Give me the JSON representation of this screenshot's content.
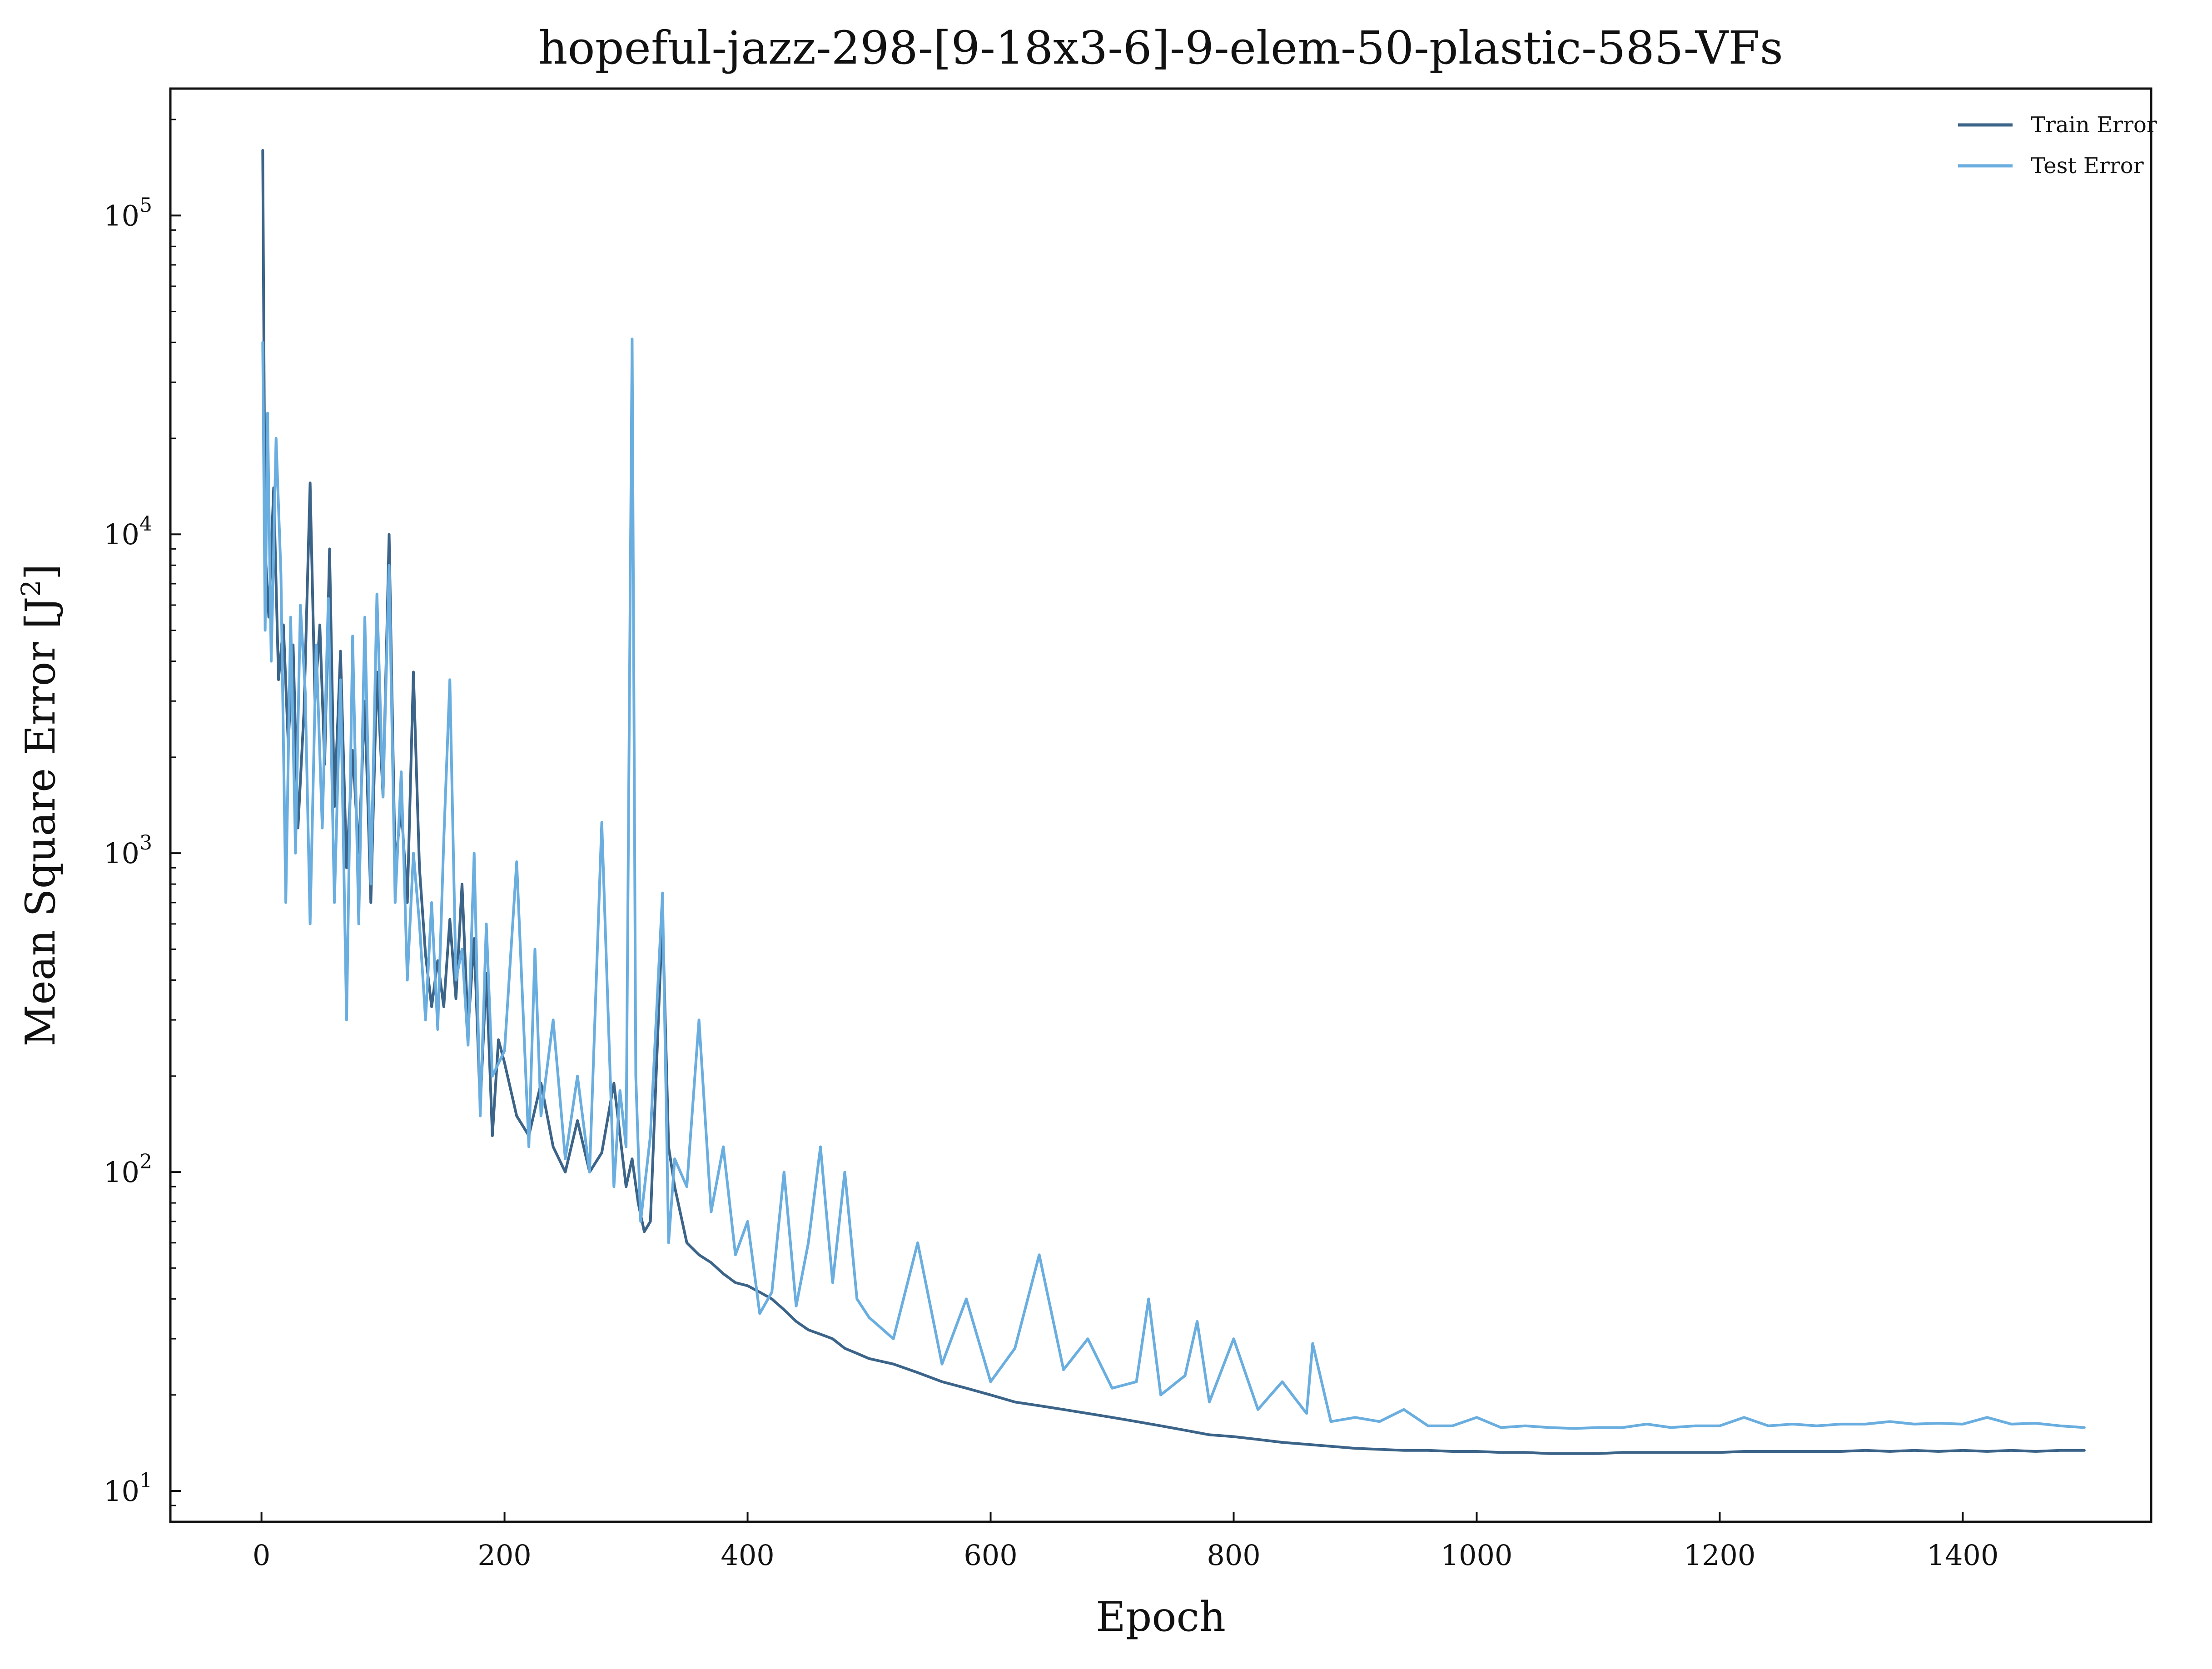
{
  "chart_data": {
    "type": "line",
    "title": "hopeful-jazz-298-[9-18x3-6]-9-elem-50-plastic-585-VFs",
    "xlabel": "Epoch",
    "ylabel": "Mean Square Error [J",
    "ylabel_sup": "2",
    "ylabel_suffix": "]",
    "y_scale": "log",
    "xlim": [
      -75,
      1555
    ],
    "ylim": [
      8,
      250000
    ],
    "xticks": [
      0,
      200,
      400,
      600,
      800,
      1000,
      1200,
      1400
    ],
    "xtick_labels": [
      "0",
      "200",
      "400",
      "600",
      "800",
      "1000",
      "1200",
      "1400"
    ],
    "yticks": [
      10,
      100,
      1000,
      10000,
      100000
    ],
    "ytick_labels": [
      {
        "base": "10",
        "exp": "1"
      },
      {
        "base": "10",
        "exp": "2"
      },
      {
        "base": "10",
        "exp": "3"
      },
      {
        "base": "10",
        "exp": "4"
      },
      {
        "base": "10",
        "exp": "5"
      }
    ],
    "grid": false,
    "legend_position": "top-right",
    "series": [
      {
        "name": "Train Error",
        "color": "#3c6489",
        "x": [
          1,
          3,
          6,
          10,
          14,
          18,
          22,
          26,
          30,
          35,
          40,
          44,
          48,
          52,
          56,
          60,
          65,
          70,
          75,
          80,
          85,
          90,
          95,
          100,
          105,
          110,
          115,
          120,
          125,
          130,
          135,
          140,
          145,
          150,
          155,
          160,
          165,
          170,
          175,
          180,
          185,
          190,
          195,
          200,
          210,
          220,
          230,
          240,
          250,
          260,
          270,
          280,
          290,
          300,
          305,
          310,
          315,
          320,
          330,
          335,
          340,
          350,
          360,
          370,
          380,
          390,
          400,
          410,
          420,
          430,
          440,
          450,
          460,
          470,
          480,
          490,
          500,
          520,
          540,
          560,
          580,
          600,
          620,
          640,
          660,
          680,
          700,
          720,
          740,
          760,
          780,
          800,
          820,
          840,
          860,
          880,
          900,
          920,
          940,
          960,
          980,
          1000,
          1020,
          1040,
          1060,
          1080,
          1100,
          1120,
          1140,
          1160,
          1180,
          1200,
          1220,
          1240,
          1260,
          1280,
          1300,
          1320,
          1340,
          1360,
          1380,
          1400,
          1420,
          1440,
          1460,
          1480,
          1500
        ],
        "y": [
          160000,
          9000,
          5500,
          14000,
          3500,
          5200,
          2200,
          4500,
          1200,
          2800,
          14500,
          3000,
          5200,
          1900,
          9000,
          1400,
          4300,
          900,
          2100,
          1000,
          3000,
          700,
          3700,
          1500,
          10000,
          900,
          1400,
          700,
          3700,
          900,
          480,
          330,
          460,
          330,
          620,
          350,
          800,
          280,
          540,
          160,
          420,
          130,
          260,
          220,
          150,
          130,
          190,
          120,
          100,
          145,
          100,
          115,
          190,
          90,
          110,
          80,
          65,
          70,
          640,
          120,
          90,
          60,
          55,
          52,
          48,
          45,
          44,
          42,
          40,
          37,
          34,
          32,
          31,
          30,
          28,
          27,
          26,
          25,
          23.5,
          22,
          21,
          20,
          19,
          18.5,
          18,
          17.5,
          17,
          16.5,
          16,
          15.5,
          15,
          14.8,
          14.5,
          14.2,
          14,
          13.8,
          13.6,
          13.5,
          13.4,
          13.4,
          13.3,
          13.3,
          13.2,
          13.2,
          13.1,
          13.1,
          13.1,
          13.2,
          13.2,
          13.2,
          13.2,
          13.2,
          13.3,
          13.3,
          13.3,
          13.3,
          13.3,
          13.4,
          13.3,
          13.4,
          13.3,
          13.4,
          13.3,
          13.4,
          13.3,
          13.4,
          13.4
        ]
      },
      {
        "name": "Test Error",
        "color": "#6aaee0",
        "x": [
          1,
          3,
          5,
          8,
          12,
          16,
          20,
          24,
          28,
          32,
          36,
          40,
          45,
          50,
          55,
          60,
          65,
          70,
          75,
          80,
          85,
          90,
          95,
          100,
          105,
          110,
          115,
          120,
          125,
          130,
          135,
          140,
          145,
          150,
          155,
          160,
          165,
          170,
          175,
          180,
          185,
          190,
          200,
          210,
          220,
          225,
          230,
          240,
          250,
          260,
          270,
          280,
          290,
          295,
          300,
          305,
          308,
          312,
          320,
          330,
          335,
          340,
          350,
          360,
          370,
          380,
          390,
          400,
          410,
          420,
          430,
          440,
          450,
          460,
          470,
          480,
          490,
          500,
          520,
          540,
          560,
          580,
          600,
          620,
          640,
          660,
          680,
          700,
          720,
          730,
          740,
          760,
          770,
          780,
          800,
          820,
          840,
          860,
          865,
          880,
          900,
          920,
          940,
          960,
          980,
          1000,
          1020,
          1040,
          1060,
          1080,
          1100,
          1120,
          1140,
          1160,
          1180,
          1200,
          1220,
          1240,
          1260,
          1280,
          1300,
          1320,
          1340,
          1360,
          1380,
          1400,
          1420,
          1440,
          1460,
          1480,
          1500
        ],
        "y": [
          40000,
          5000,
          24000,
          4000,
          20000,
          7500,
          700,
          5500,
          1000,
          6000,
          3200,
          600,
          4500,
          1200,
          6300,
          700,
          3500,
          300,
          4800,
          600,
          5500,
          800,
          6500,
          1500,
          8000,
          700,
          1800,
          400,
          1000,
          600,
          300,
          700,
          280,
          1100,
          3500,
          400,
          500,
          250,
          1000,
          150,
          600,
          200,
          240,
          940,
          120,
          500,
          150,
          300,
          110,
          200,
          100,
          1250,
          90,
          180,
          120,
          41000,
          200,
          70,
          130,
          750,
          60,
          110,
          90,
          300,
          75,
          120,
          55,
          70,
          36,
          42,
          100,
          38,
          60,
          120,
          45,
          100,
          40,
          35,
          30,
          60,
          25,
          40,
          22,
          28,
          55,
          24,
          30,
          21,
          22,
          40,
          20,
          23,
          34,
          19,
          30,
          18,
          22,
          17.5,
          29,
          16.5,
          17,
          16.5,
          18,
          16,
          16,
          17,
          15.8,
          16,
          15.8,
          15.7,
          15.8,
          15.8,
          16.2,
          15.8,
          16,
          16,
          17,
          16,
          16.2,
          16,
          16.2,
          16.2,
          16.5,
          16.2,
          16.3,
          16.2,
          17,
          16.2,
          16.3,
          16,
          15.8
        ]
      }
    ]
  }
}
